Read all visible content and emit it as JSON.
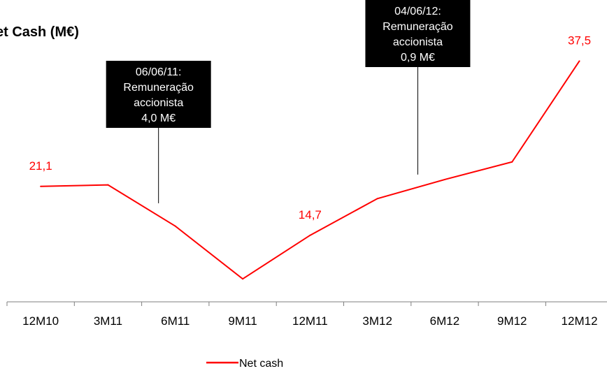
{
  "chart_data": {
    "type": "line",
    "title": "et Cash (M€)",
    "categories": [
      "12M10",
      "3M11",
      "6M11",
      "9M11",
      "12M11",
      "3M12",
      "6M12",
      "9M12",
      "12M12"
    ],
    "series": [
      {
        "name": "Net cash",
        "values": [
          21.1,
          21.3,
          15.9,
          9.0,
          14.7,
          19.5,
          22.0,
          24.3,
          37.5
        ],
        "color": "#ff0000"
      }
    ],
    "data_labels": [
      {
        "index": 0,
        "text": "21,1"
      },
      {
        "index": 4,
        "text": "14,7"
      },
      {
        "index": 8,
        "text": "37,5"
      }
    ],
    "annotations": [
      {
        "position": 1.75,
        "lines": [
          "06/06/11:",
          "Remuneração",
          "accionista",
          "4,0 M€"
        ]
      },
      {
        "position": 5.6,
        "lines": [
          "04/06/12:",
          "Remuneração",
          "accionista",
          "0,9 M€"
        ]
      }
    ],
    "ylim": [
      6,
      40
    ],
    "xlabel": "",
    "ylabel": "",
    "grid": false,
    "legend_position": "bottom"
  }
}
